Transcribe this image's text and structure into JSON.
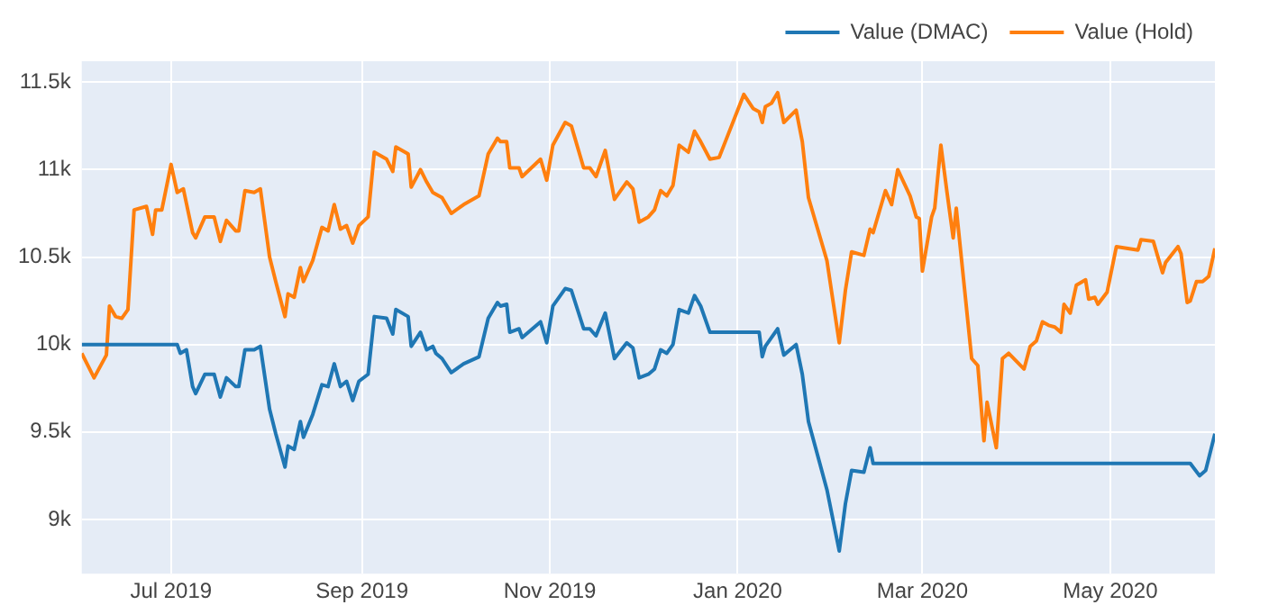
{
  "chart_data": {
    "type": "line",
    "legend": "top right",
    "grid": true,
    "ylim": [
      8690,
      11620
    ],
    "yticks": [
      {
        "value": 9000,
        "label": "9k"
      },
      {
        "value": 9500,
        "label": "9.5k"
      },
      {
        "value": 10000,
        "label": "10k"
      },
      {
        "value": 10500,
        "label": "10.5k"
      },
      {
        "value": 11000,
        "label": "11k"
      },
      {
        "value": 11500,
        "label": "11.5k"
      }
    ],
    "xlim": [
      "2019-06-02",
      "2020-06-04"
    ],
    "xticks": [
      {
        "value": "2019-07-01",
        "label": "Jul 2019"
      },
      {
        "value": "2019-09-01",
        "label": "Sep 2019"
      },
      {
        "value": "2019-11-01",
        "label": "Nov 2019"
      },
      {
        "value": "2020-01-01",
        "label": "Jan 2020"
      },
      {
        "value": "2020-03-01",
        "label": "Mar 2020"
      },
      {
        "value": "2020-05-01",
        "label": "May 2020"
      }
    ],
    "series": [
      {
        "name": "Value (DMAC)",
        "color": "#1f77b4",
        "x": [
          "2019-06-02",
          "2019-07-03",
          "2019-07-04",
          "2019-07-06",
          "2019-07-08",
          "2019-07-09",
          "2019-07-12",
          "2019-07-15",
          "2019-07-17",
          "2019-07-19",
          "2019-07-22",
          "2019-07-23",
          "2019-07-25",
          "2019-07-28",
          "2019-07-30",
          "2019-08-02",
          "2019-08-04",
          "2019-08-07",
          "2019-08-08",
          "2019-08-10",
          "2019-08-12",
          "2019-08-13",
          "2019-08-16",
          "2019-08-19",
          "2019-08-21",
          "2019-08-23",
          "2019-08-25",
          "2019-08-27",
          "2019-08-29",
          "2019-08-31",
          "2019-09-03",
          "2019-09-05",
          "2019-09-09",
          "2019-09-11",
          "2019-09-12",
          "2019-09-16",
          "2019-09-17",
          "2019-09-20",
          "2019-09-22",
          "2019-09-24",
          "2019-09-25",
          "2019-09-27",
          "2019-09-30",
          "2019-10-04",
          "2019-10-09",
          "2019-10-12",
          "2019-10-15",
          "2019-10-16",
          "2019-10-18",
          "2019-10-19",
          "2019-10-22",
          "2019-10-23",
          "2019-10-29",
          "2019-10-31",
          "2019-11-02",
          "2019-11-06",
          "2019-11-08",
          "2019-11-12",
          "2019-11-14",
          "2019-11-16",
          "2019-11-19",
          "2019-11-22",
          "2019-11-26",
          "2019-11-28",
          "2019-11-30",
          "2019-12-03",
          "2019-12-05",
          "2019-12-07",
          "2019-12-09",
          "2019-12-11",
          "2019-12-13",
          "2019-12-16",
          "2019-12-18",
          "2019-12-20",
          "2019-12-23",
          "2020-01-08",
          "2020-01-09",
          "2020-01-10",
          "2020-01-12",
          "2020-01-14",
          "2020-01-16",
          "2020-01-20",
          "2020-01-22",
          "2020-01-24",
          "2020-01-30",
          "2020-02-03",
          "2020-02-05",
          "2020-02-07",
          "2020-02-11",
          "2020-02-13",
          "2020-02-14",
          "2020-05-27",
          "2020-05-30",
          "2020-06-01",
          "2020-06-04"
        ],
        "values": [
          10000,
          10000,
          9950,
          9970,
          9760,
          9720,
          9830,
          9830,
          9700,
          9810,
          9760,
          9760,
          9970,
          9970,
          9990,
          9630,
          9490,
          9300,
          9420,
          9400,
          9560,
          9470,
          9600,
          9770,
          9760,
          9890,
          9760,
          9790,
          9680,
          9790,
          9830,
          10160,
          10150,
          10060,
          10200,
          10160,
          9990,
          10070,
          9970,
          9990,
          9950,
          9920,
          9840,
          9890,
          9930,
          10150,
          10240,
          10220,
          10230,
          10070,
          10090,
          10040,
          10130,
          10010,
          10220,
          10320,
          10310,
          10090,
          10090,
          10050,
          10180,
          9920,
          10010,
          9980,
          9810,
          9830,
          9860,
          9970,
          9950,
          10000,
          10200,
          10180,
          10280,
          10220,
          10070,
          10070,
          9930,
          9990,
          10040,
          10090,
          9940,
          10000,
          9830,
          9560,
          9170,
          8820,
          9090,
          9280,
          9270,
          9410,
          9320,
          9320,
          9250,
          9280,
          9490
        ]
      },
      {
        "name": "Value (Hold)",
        "color": "#ff7f0e",
        "x": [
          "2019-06-02",
          "2019-06-06",
          "2019-06-10",
          "2019-06-11",
          "2019-06-13",
          "2019-06-15",
          "2019-06-17",
          "2019-06-19",
          "2019-06-23",
          "2019-06-25",
          "2019-06-26",
          "2019-06-28",
          "2019-07-01",
          "2019-07-03",
          "2019-07-05",
          "2019-07-08",
          "2019-07-09",
          "2019-07-12",
          "2019-07-15",
          "2019-07-17",
          "2019-07-19",
          "2019-07-22",
          "2019-07-23",
          "2019-07-25",
          "2019-07-28",
          "2019-07-30",
          "2019-08-02",
          "2019-08-04",
          "2019-08-07",
          "2019-08-08",
          "2019-08-10",
          "2019-08-12",
          "2019-08-13",
          "2019-08-16",
          "2019-08-19",
          "2019-08-21",
          "2019-08-23",
          "2019-08-25",
          "2019-08-27",
          "2019-08-29",
          "2019-08-31",
          "2019-09-03",
          "2019-09-05",
          "2019-09-09",
          "2019-09-11",
          "2019-09-12",
          "2019-09-16",
          "2019-09-17",
          "2019-09-20",
          "2019-09-22",
          "2019-09-24",
          "2019-09-25",
          "2019-09-27",
          "2019-09-30",
          "2019-10-04",
          "2019-10-09",
          "2019-10-12",
          "2019-10-15",
          "2019-10-16",
          "2019-10-18",
          "2019-10-19",
          "2019-10-22",
          "2019-10-23",
          "2019-10-29",
          "2019-10-31",
          "2019-11-02",
          "2019-11-06",
          "2019-11-08",
          "2019-11-12",
          "2019-11-14",
          "2019-11-16",
          "2019-11-19",
          "2019-11-22",
          "2019-11-26",
          "2019-11-28",
          "2019-11-30",
          "2019-12-03",
          "2019-12-05",
          "2019-12-07",
          "2019-12-09",
          "2019-12-11",
          "2019-12-13",
          "2019-12-16",
          "2019-12-18",
          "2019-12-20",
          "2019-12-23",
          "2019-12-26",
          "2019-12-28",
          "2020-01-03",
          "2020-01-06",
          "2020-01-08",
          "2020-01-09",
          "2020-01-10",
          "2020-01-12",
          "2020-01-14",
          "2020-01-16",
          "2020-01-20",
          "2020-01-22",
          "2020-01-24",
          "2020-01-30",
          "2020-02-03",
          "2020-02-05",
          "2020-02-07",
          "2020-02-11",
          "2020-02-13",
          "2020-02-14",
          "2020-02-18",
          "2020-02-20",
          "2020-02-22",
          "2020-02-26",
          "2020-02-28",
          "2020-02-29",
          "2020-03-01",
          "2020-03-04",
          "2020-03-05",
          "2020-03-07",
          "2020-03-09",
          "2020-03-11",
          "2020-03-12",
          "2020-03-17",
          "2020-03-19",
          "2020-03-21",
          "2020-03-22",
          "2020-03-25",
          "2020-03-27",
          "2020-03-29",
          "2020-04-03",
          "2020-04-05",
          "2020-04-07",
          "2020-04-09",
          "2020-04-11",
          "2020-04-13",
          "2020-04-15",
          "2020-04-16",
          "2020-04-18",
          "2020-04-20",
          "2020-04-23",
          "2020-04-24",
          "2020-04-26",
          "2020-04-27",
          "2020-04-30",
          "2020-05-03",
          "2020-05-10",
          "2020-05-11",
          "2020-05-15",
          "2020-05-18",
          "2020-05-19",
          "2020-05-23",
          "2020-05-24",
          "2020-05-26",
          "2020-05-27",
          "2020-05-29",
          "2020-05-31",
          "2020-06-02",
          "2020-06-04"
        ],
        "values": [
          9950,
          9810,
          9940,
          10220,
          10160,
          10150,
          10200,
          10770,
          10790,
          10630,
          10770,
          10770,
          11030,
          10870,
          10890,
          10640,
          10610,
          10730,
          10730,
          10590,
          10710,
          10650,
          10650,
          10880,
          10870,
          10890,
          10500,
          10360,
          10160,
          10290,
          10270,
          10440,
          10360,
          10480,
          10670,
          10650,
          10800,
          10660,
          10680,
          10580,
          10680,
          10730,
          11100,
          11060,
          10990,
          11130,
          11090,
          10900,
          11000,
          10930,
          10870,
          10860,
          10840,
          10750,
          10800,
          10850,
          11090,
          11180,
          11160,
          11160,
          11010,
          11010,
          10960,
          11060,
          10940,
          11140,
          11270,
          11250,
          11010,
          11010,
          10960,
          11110,
          10830,
          10930,
          10890,
          10700,
          10730,
          10770,
          10880,
          10850,
          10910,
          11140,
          11100,
          11220,
          11160,
          11060,
          11070,
          11160,
          11430,
          11350,
          11330,
          11270,
          11360,
          11380,
          11440,
          11270,
          11340,
          11160,
          10840,
          10480,
          10010,
          10310,
          10530,
          10510,
          10660,
          10640,
          10880,
          10800,
          11000,
          10850,
          10730,
          10720,
          10420,
          10730,
          10780,
          11140,
          10870,
          10610,
          10780,
          9920,
          9880,
          9450,
          9670,
          9410,
          9920,
          9950,
          9860,
          9990,
          10020,
          10130,
          10110,
          10100,
          10070,
          10230,
          10180,
          10340,
          10370,
          10260,
          10270,
          10230,
          10300,
          10560,
          10540,
          10600,
          10590,
          10410,
          10470,
          10560,
          10520,
          10240,
          10250,
          10360,
          10360,
          10390,
          10550
        ]
      }
    ]
  }
}
